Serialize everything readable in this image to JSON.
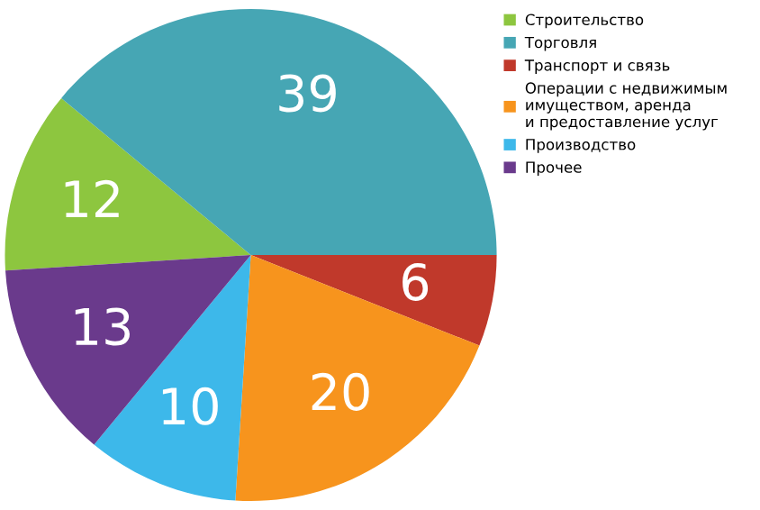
{
  "chart_data": {
    "type": "pie",
    "categories": [
      "Строительство",
      "Торговля",
      "Транспорт и связь",
      "Операции с недвижимым\nимуществом, аренда\nи предоставление услуг",
      "Производство",
      "Прочее"
    ],
    "values": [
      12,
      39,
      6,
      20,
      10,
      13
    ],
    "colors": [
      "#8dc63f",
      "#46a6b4",
      "#c0392b",
      "#f7941d",
      "#3db8ea",
      "#6a3a8c"
    ],
    "data_labels": true,
    "legend": "top right"
  }
}
